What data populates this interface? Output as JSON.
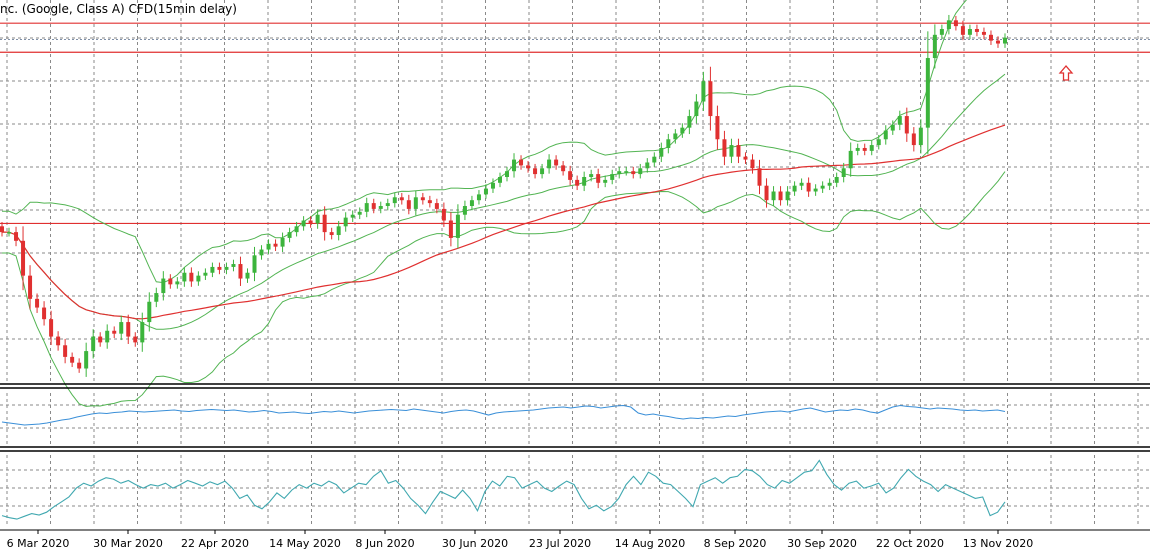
{
  "header": {
    "title": "nc. (Google, Class A) CFD(15min delay)"
  },
  "colors": {
    "bull": "#3cb43c",
    "bear": "#e03030",
    "band": "#52b452",
    "ma": "#e03030",
    "level": "#e03030",
    "current_price": "#8090a8",
    "osc1": "#3a8fd8",
    "osc2": "#40a8b0",
    "arrow": "#e03030",
    "separator": "#000000"
  },
  "icons": {
    "signal_arrow": "up-arrow-icon"
  },
  "chart_data": {
    "type": "candlestick",
    "x_ticks": [
      "6 Mar 2020",
      "30 Mar 2020",
      "22 Apr 2020",
      "14 May 2020",
      "8 Jun 2020",
      "30 Jun 2020",
      "23 Jul 2020",
      "14 Aug 2020",
      "8 Sep 2020",
      "30 Sep 2020",
      "22 Oct 2020",
      "13 Nov 2020"
    ],
    "grid": true,
    "close_series": [
      1300,
      1300,
      1285,
      1225,
      1185,
      1170,
      1150,
      1120,
      1105,
      1085,
      1075,
      1065,
      1095,
      1120,
      1110,
      1130,
      1125,
      1145,
      1120,
      1110,
      1145,
      1180,
      1195,
      1220,
      1210,
      1215,
      1230,
      1215,
      1225,
      1230,
      1240,
      1235,
      1240,
      1245,
      1220,
      1230,
      1260,
      1270,
      1280,
      1275,
      1290,
      1300,
      1310,
      1320,
      1315,
      1330,
      1300,
      1295,
      1310,
      1325,
      1330,
      1335,
      1350,
      1340,
      1345,
      1350,
      1360,
      1355,
      1340,
      1360,
      1355,
      1350,
      1340,
      1320,
      1290,
      1330,
      1345,
      1355,
      1365,
      1375,
      1385,
      1395,
      1405,
      1425,
      1415,
      1410,
      1400,
      1410,
      1425,
      1415,
      1405,
      1390,
      1380,
      1395,
      1400,
      1385,
      1390,
      1400,
      1405,
      1405,
      1400,
      1410,
      1420,
      1430,
      1445,
      1460,
      1470,
      1480,
      1500,
      1525,
      1560,
      1500,
      1460,
      1430,
      1450,
      1430,
      1425,
      1410,
      1380,
      1355,
      1370,
      1355,
      1370,
      1380,
      1385,
      1370,
      1375,
      1380,
      1385,
      1395,
      1410,
      1440,
      1445,
      1440,
      1450,
      1460,
      1475,
      1485,
      1500,
      1470,
      1450,
      1480,
      1600,
      1640,
      1650,
      1665,
      1655,
      1640,
      1650,
      1645,
      1640,
      1630,
      1625,
      1635
    ],
    "levels": [
      1660,
      1610,
      1315
    ],
    "current_price": 1632,
    "osc1_series": [
      0.42,
      0.4,
      0.38,
      0.36,
      0.37,
      0.38,
      0.4,
      0.43,
      0.46,
      0.48,
      0.52,
      0.55,
      0.58,
      0.6,
      0.59,
      0.61,
      0.62,
      0.64,
      0.63,
      0.62,
      0.63,
      0.64,
      0.65,
      0.66,
      0.64,
      0.63,
      0.65,
      0.66,
      0.67,
      0.66,
      0.65,
      0.66,
      0.64,
      0.62,
      0.63,
      0.65,
      0.63,
      0.6,
      0.61,
      0.62,
      0.6,
      0.59,
      0.61,
      0.63,
      0.62,
      0.64,
      0.62,
      0.6,
      0.62,
      0.64,
      0.65,
      0.66,
      0.67,
      0.66,
      0.65,
      0.68,
      0.66,
      0.64,
      0.62,
      0.6,
      0.63,
      0.65,
      0.66,
      0.64,
      0.6,
      0.56,
      0.6,
      0.62,
      0.63,
      0.64,
      0.65,
      0.66,
      0.68,
      0.7,
      0.71,
      0.72,
      0.7,
      0.72,
      0.74,
      0.73,
      0.7,
      0.72,
      0.74,
      0.75,
      0.72,
      0.6,
      0.56,
      0.58,
      0.55,
      0.53,
      0.5,
      0.48,
      0.5,
      0.49,
      0.51,
      0.5,
      0.52,
      0.54,
      0.53,
      0.56,
      0.58,
      0.6,
      0.62,
      0.63,
      0.64,
      0.62,
      0.65,
      0.68,
      0.7,
      0.66,
      0.62,
      0.64,
      0.66,
      0.65,
      0.68,
      0.66,
      0.62,
      0.6,
      0.66,
      0.72,
      0.75,
      0.73,
      0.72,
      0.7,
      0.68,
      0.7,
      0.69,
      0.68,
      0.66,
      0.65,
      0.66,
      0.64,
      0.65,
      0.66,
      0.63
    ],
    "osc2_series": [
      0.15,
      0.12,
      0.1,
      0.14,
      0.18,
      0.16,
      0.2,
      0.28,
      0.35,
      0.42,
      0.55,
      0.62,
      0.58,
      0.65,
      0.7,
      0.68,
      0.62,
      0.66,
      0.6,
      0.55,
      0.6,
      0.58,
      0.62,
      0.55,
      0.6,
      0.66,
      0.62,
      0.58,
      0.64,
      0.6,
      0.65,
      0.55,
      0.4,
      0.45,
      0.3,
      0.25,
      0.35,
      0.48,
      0.4,
      0.52,
      0.6,
      0.55,
      0.62,
      0.58,
      0.65,
      0.6,
      0.48,
      0.55,
      0.62,
      0.6,
      0.72,
      0.8,
      0.62,
      0.66,
      0.55,
      0.4,
      0.3,
      0.18,
      0.35,
      0.5,
      0.45,
      0.4,
      0.52,
      0.4,
      0.22,
      0.5,
      0.65,
      0.58,
      0.72,
      0.7,
      0.55,
      0.6,
      0.65,
      0.55,
      0.5,
      0.58,
      0.65,
      0.6,
      0.4,
      0.25,
      0.3,
      0.22,
      0.28,
      0.4,
      0.6,
      0.72,
      0.6,
      0.78,
      0.72,
      0.62,
      0.6,
      0.5,
      0.4,
      0.28,
      0.6,
      0.65,
      0.7,
      0.62,
      0.7,
      0.72,
      0.82,
      0.8,
      0.72,
      0.6,
      0.55,
      0.66,
      0.62,
      0.7,
      0.78,
      0.8,
      0.95,
      0.75,
      0.6,
      0.52,
      0.62,
      0.65,
      0.55,
      0.58,
      0.62,
      0.48,
      0.55,
      0.7,
      0.82,
      0.72,
      0.65,
      0.6,
      0.5,
      0.6,
      0.55,
      0.5,
      0.45,
      0.4,
      0.42,
      0.15,
      0.2,
      0.35
    ]
  }
}
